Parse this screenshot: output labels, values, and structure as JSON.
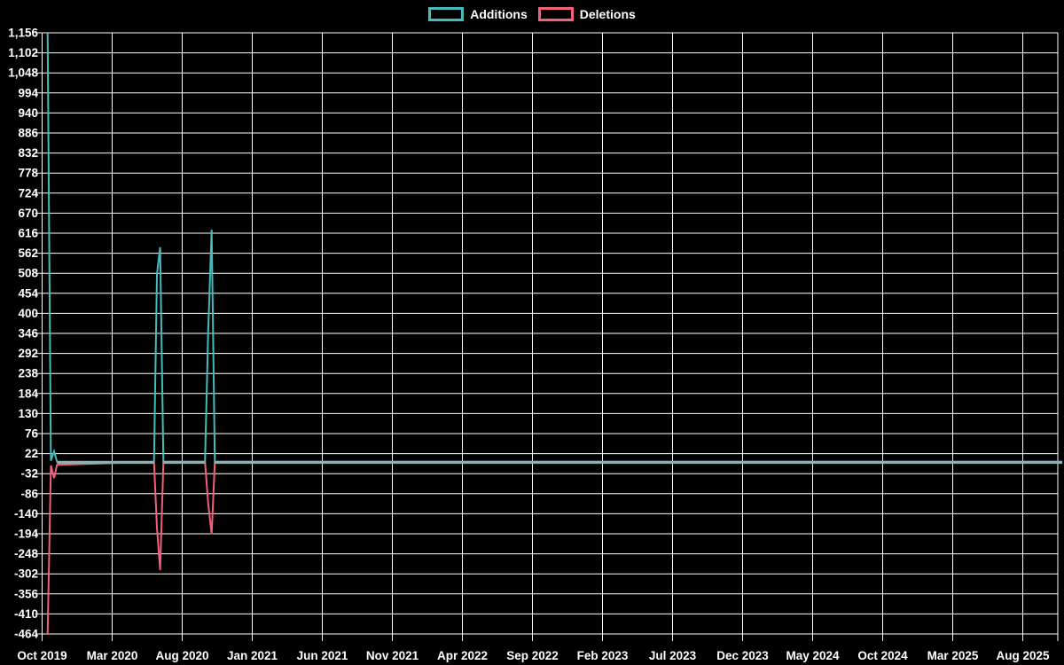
{
  "chart_data": {
    "type": "line",
    "title": "",
    "background_color": "#000000",
    "grid": true,
    "grid_color": "#ffffff",
    "legend_position": "top-center",
    "legend": [
      {
        "label": "Additions",
        "color": "#45bcbc"
      },
      {
        "label": "Deletions",
        "color": "#f2607a"
      }
    ],
    "x_axis_type": "time",
    "x_domain": [
      "2019-10-01",
      "2025-11-01"
    ],
    "x_tick_labels": [
      "Oct 2019",
      "Mar 2020",
      "Aug 2020",
      "Jan 2021",
      "Jun 2021",
      "Nov 2021",
      "Apr 2022",
      "Sep 2022",
      "Feb 2023",
      "Jul 2023",
      "Dec 2023",
      "May 2024",
      "Oct 2024",
      "Mar 2025",
      "Aug 2025"
    ],
    "y_range": [
      -464,
      1156
    ],
    "y_step": 54,
    "y_tick_labels": [
      "1,156",
      "1,102",
      "1,048",
      "994",
      "940",
      "886",
      "832",
      "778",
      "724",
      "670",
      "616",
      "562",
      "508",
      "454",
      "400",
      "346",
      "292",
      "238",
      "184",
      "130",
      "76",
      "22",
      "-32",
      "-86",
      "-140",
      "-194",
      "-248",
      "-302",
      "-356",
      "-410",
      "-464"
    ],
    "overlap_color": "#96adb0",
    "series": [
      {
        "name": "Additions",
        "color": "#45bcbc",
        "points": [
          [
            "2019-10-13",
            1156
          ],
          [
            "2019-10-20",
            3
          ],
          [
            "2019-10-27",
            28
          ],
          [
            "2019-11-03",
            0
          ],
          [
            "2020-05-31",
            0
          ],
          [
            "2020-06-07",
            505
          ],
          [
            "2020-06-14",
            578
          ],
          [
            "2020-06-21",
            0
          ],
          [
            "2020-09-20",
            0
          ],
          [
            "2020-09-27",
            350
          ],
          [
            "2020-10-04",
            625
          ],
          [
            "2020-10-11",
            0
          ],
          [
            "2025-10-26",
            0
          ]
        ]
      },
      {
        "name": "Deletions",
        "color": "#f2607a",
        "points": [
          [
            "2019-10-13",
            -464
          ],
          [
            "2019-10-20",
            -10
          ],
          [
            "2019-10-27",
            -44
          ],
          [
            "2019-11-03",
            -8
          ],
          [
            "2020-05-31",
            0
          ],
          [
            "2020-06-07",
            -177
          ],
          [
            "2020-06-14",
            -292
          ],
          [
            "2020-06-21",
            0
          ],
          [
            "2020-09-20",
            0
          ],
          [
            "2020-09-27",
            -112
          ],
          [
            "2020-10-04",
            -195
          ],
          [
            "2020-10-11",
            0
          ],
          [
            "2025-10-26",
            0
          ]
        ]
      }
    ]
  }
}
